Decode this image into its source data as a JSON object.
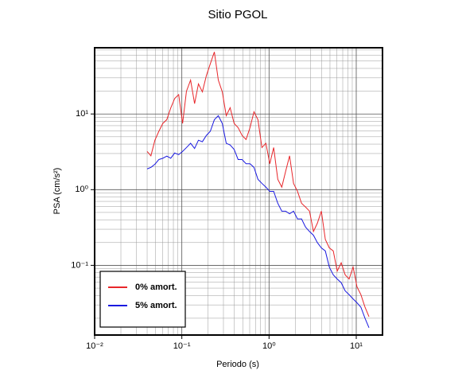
{
  "chart_data": {
    "type": "line",
    "title": "Sitio PGOL",
    "xlabel": "Periodo (s)",
    "ylabel": "PSA (cm/s²)",
    "xscale": "log",
    "yscale": "log",
    "grid": true,
    "legend": "lower left",
    "xlim": [
      0.01,
      20
    ],
    "ylim": [
      0.012,
      75
    ],
    "xticks": [
      {
        "value": 0.01,
        "label": "10⁻²"
      },
      {
        "value": 0.1,
        "label": "10⁻¹"
      },
      {
        "value": 1,
        "label": "10⁰"
      },
      {
        "value": 10,
        "label": "10¹"
      }
    ],
    "yticks": [
      {
        "value": 0.1,
        "label": "10⁻¹"
      },
      {
        "value": 1,
        "label": "10⁰"
      },
      {
        "value": 10,
        "label": "10¹"
      }
    ],
    "xminorticks": [
      0.02,
      0.03,
      0.04,
      0.05,
      0.06,
      0.07,
      0.08,
      0.09,
      0.2,
      0.3,
      0.4,
      0.5,
      0.6,
      0.7,
      0.8,
      0.9,
      2,
      3,
      4,
      5,
      6,
      7,
      8,
      9
    ],
    "yminorticks": [
      0.02,
      0.03,
      0.04,
      0.05,
      0.06,
      0.07,
      0.08,
      0.09,
      0.2,
      0.3,
      0.4,
      0.5,
      0.6,
      0.7,
      0.8,
      0.9,
      2,
      3,
      4,
      5,
      6,
      7,
      8,
      9,
      20,
      30,
      40,
      50,
      60,
      70
    ],
    "x": [
      0.04,
      0.0442,
      0.0491,
      0.0545,
      0.0605,
      0.0672,
      0.0746,
      0.0828,
      0.092,
      0.102,
      0.113,
      0.126,
      0.14,
      0.155,
      0.172,
      0.191,
      0.212,
      0.236,
      0.262,
      0.291,
      0.323,
      0.358,
      0.398,
      0.442,
      0.491,
      0.545,
      0.605,
      0.672,
      0.746,
      0.828,
      0.92,
      1.02,
      1.13,
      1.26,
      1.4,
      1.55,
      1.72,
      1.91,
      2.12,
      2.36,
      2.62,
      2.91,
      3.23,
      3.58,
      3.98,
      4.42,
      4.91,
      5.45,
      6.05,
      6.72,
      7.46,
      8.28,
      9.2,
      10.2,
      11.3,
      12.6,
      14.0
    ],
    "series": [
      {
        "name": "0% amort.",
        "color": "#e8262a",
        "values": [
          3.2,
          2.8,
          4.5,
          5.9,
          7.5,
          8.4,
          12,
          16,
          18,
          7.5,
          20,
          28,
          13.7,
          25,
          19.6,
          32,
          46,
          66,
          28,
          19.6,
          9.5,
          12.1,
          7.5,
          6.6,
          5.2,
          4.6,
          6.6,
          10.7,
          8.4,
          3.6,
          4.1,
          2.2,
          3.6,
          1.37,
          1.08,
          1.75,
          2.8,
          1.21,
          0.95,
          0.66,
          0.59,
          0.52,
          0.28,
          0.36,
          0.52,
          0.22,
          0.17,
          0.155,
          0.084,
          0.108,
          0.075,
          0.066,
          0.095,
          0.052,
          0.041,
          0.028,
          0.021
        ]
      },
      {
        "name": "5% amort.",
        "color": "#1a1ae0",
        "values": [
          1.88,
          1.97,
          2.17,
          2.5,
          2.6,
          2.77,
          2.6,
          3.05,
          2.9,
          3.2,
          3.6,
          4.1,
          3.5,
          4.5,
          4.3,
          5.2,
          5.9,
          8.4,
          9.5,
          7.5,
          4.1,
          3.9,
          3.4,
          2.5,
          2.5,
          2.2,
          2.2,
          1.97,
          1.37,
          1.21,
          1.08,
          0.95,
          0.95,
          0.66,
          0.52,
          0.52,
          0.48,
          0.52,
          0.41,
          0.41,
          0.32,
          0.28,
          0.25,
          0.2,
          0.17,
          0.155,
          0.095,
          0.075,
          0.066,
          0.059,
          0.046,
          0.041,
          0.036,
          0.032,
          0.028,
          0.02,
          0.015
        ]
      }
    ]
  }
}
